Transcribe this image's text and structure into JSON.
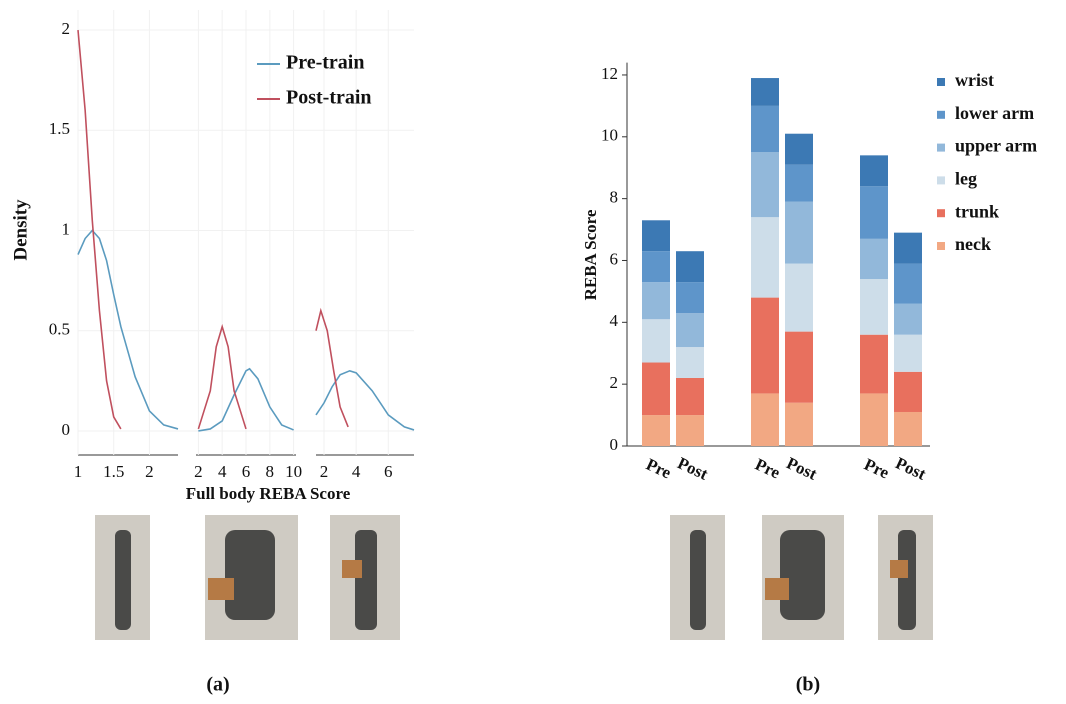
{
  "figure": {
    "captions": [
      "(a)",
      "(b)"
    ]
  },
  "chart_data": [
    {
      "type": "line",
      "y_label": "Density",
      "x_label": "Full body REBA Score",
      "ylim": [
        -0.12,
        2.1
      ],
      "yticks": [
        0,
        0.5,
        1,
        1.5,
        2
      ],
      "grid": true,
      "series": [
        {
          "name": "Pre-train",
          "color": "#5b9bbf"
        },
        {
          "name": "Post-train",
          "color": "#c0505e"
        }
      ],
      "panels": [
        {
          "xlim": [
            1,
            2.4
          ],
          "xticks": [
            1,
            1.5,
            2
          ],
          "lines": [
            {
              "x": [
                1,
                1.1,
                1.2,
                1.3,
                1.4,
                1.5,
                1.6,
                1.8,
                2.0,
                2.2,
                2.4
              ],
              "values": [
                0.88,
                0.96,
                1.0,
                0.96,
                0.85,
                0.68,
                0.52,
                0.27,
                0.1,
                0.03,
                0.01
              ]
            },
            {
              "x": [
                1,
                1.1,
                1.2,
                1.3,
                1.4,
                1.5,
                1.6
              ],
              "values": [
                2.0,
                1.6,
                1.05,
                0.6,
                0.25,
                0.07,
                0.01
              ]
            }
          ]
        },
        {
          "xlim": [
            1.8,
            10.2
          ],
          "xticks": [
            2,
            4,
            6,
            8,
            10
          ],
          "lines": [
            {
              "x": [
                2,
                3,
                4,
                5,
                6,
                6.3,
                7,
                8,
                9,
                10
              ],
              "values": [
                0,
                0.01,
                0.05,
                0.18,
                0.3,
                0.31,
                0.26,
                0.12,
                0.03,
                0.005
              ]
            },
            {
              "x": [
                2,
                3,
                3.5,
                4,
                4.5,
                5,
                6
              ],
              "values": [
                0.01,
                0.2,
                0.42,
                0.52,
                0.42,
                0.2,
                0.01
              ]
            }
          ]
        },
        {
          "xlim": [
            1.5,
            7.6
          ],
          "xticks": [
            2,
            4,
            6
          ],
          "lines": [
            {
              "x": [
                1.5,
                2,
                2.5,
                3,
                3.6,
                4,
                5,
                6,
                7,
                7.6
              ],
              "values": [
                0.08,
                0.14,
                0.22,
                0.28,
                0.3,
                0.29,
                0.2,
                0.08,
                0.02,
                0.005
              ]
            },
            {
              "x": [
                1.5,
                1.8,
                2.2,
                2.6,
                3,
                3.5
              ],
              "values": [
                0.5,
                0.6,
                0.5,
                0.3,
                0.12,
                0.02
              ]
            }
          ]
        }
      ]
    },
    {
      "type": "bar",
      "stacked": true,
      "y_label": "REBA Score",
      "categories": [
        "Pre",
        "Post",
        "Pre",
        "Post",
        "Pre",
        "Post"
      ],
      "ylim": [
        0,
        12.4
      ],
      "yticks": [
        0,
        2,
        4,
        6,
        8,
        10,
        12
      ],
      "series": [
        {
          "name": "neck",
          "color": "#f2a883",
          "values": [
            1.0,
            1.0,
            1.7,
            1.4,
            1.7,
            1.1
          ]
        },
        {
          "name": "trunk",
          "color": "#e8705e",
          "values": [
            1.7,
            1.2,
            3.1,
            2.3,
            1.9,
            1.3
          ]
        },
        {
          "name": "leg",
          "color": "#cddde9",
          "values": [
            1.4,
            1.0,
            2.6,
            2.2,
            1.8,
            1.2
          ]
        },
        {
          "name": "upper arm",
          "color": "#92b8da",
          "values": [
            1.2,
            1.1,
            2.1,
            2.0,
            1.3,
            1.0
          ]
        },
        {
          "name": "lower arm",
          "color": "#5e95ca",
          "values": [
            1.0,
            1.0,
            1.5,
            1.2,
            1.7,
            1.3
          ]
        },
        {
          "name": "wrist",
          "color": "#3c79b4",
          "values": [
            1.0,
            1.0,
            0.9,
            1.0,
            1.0,
            1.0
          ]
        }
      ]
    }
  ]
}
